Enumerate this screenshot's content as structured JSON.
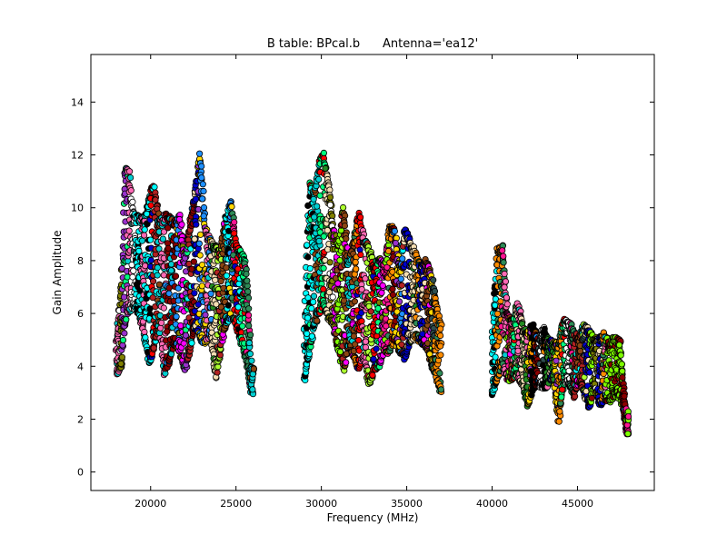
{
  "chart_data": {
    "type": "scatter",
    "title": "B table: BPcal.b      Antenna='ea12'",
    "xlabel": "Frequency (MHz)",
    "ylabel": "Gain Amplitude",
    "xlim": [
      16500,
      49500
    ],
    "ylim": [
      -0.7,
      15.8
    ],
    "xticks": [
      "20000",
      "25000",
      "30000",
      "35000",
      "40000",
      "45000"
    ],
    "xtick_values": [
      20000,
      25000,
      30000,
      35000,
      40000,
      45000
    ],
    "yticks": [
      "0",
      "2",
      "4",
      "6",
      "8",
      "10",
      "12",
      "14"
    ],
    "ytick_values": [
      0,
      2,
      4,
      6,
      8,
      10,
      12,
      14
    ],
    "grid": false,
    "legend": "none",
    "marker": "circle",
    "marker_edge_color": "#000000",
    "band_groups": [
      {
        "name": "group1",
        "x_range": [
          18000,
          26000
        ],
        "envelope": [
          [
            18000,
            3.6,
            5.1
          ],
          [
            18300,
            4.0,
            7.2
          ],
          [
            18500,
            5.5,
            11.4
          ],
          [
            18700,
            6.0,
            11.6
          ],
          [
            19000,
            6.2,
            9.8
          ],
          [
            19300,
            6.0,
            9.7
          ],
          [
            19600,
            5.2,
            9.6
          ],
          [
            19900,
            4.1,
            10.4
          ],
          [
            20200,
            4.6,
            11.0
          ],
          [
            20500,
            5.5,
            9.5
          ],
          [
            20800,
            3.6,
            9.8
          ],
          [
            21100,
            4.1,
            9.7
          ],
          [
            21400,
            4.9,
            9.5
          ],
          [
            21700,
            4.4,
            9.8
          ],
          [
            22000,
            3.7,
            8.1
          ],
          [
            22300,
            4.5,
            9.4
          ],
          [
            22600,
            5.5,
            10.6
          ],
          [
            22900,
            5.0,
            12.1
          ],
          [
            23200,
            4.8,
            9.3
          ],
          [
            23500,
            5.2,
            8.8
          ],
          [
            23800,
            3.5,
            8.6
          ],
          [
            24100,
            4.5,
            8.5
          ],
          [
            24400,
            5.6,
            9.6
          ],
          [
            24700,
            5.8,
            10.4
          ],
          [
            25000,
            5.5,
            8.6
          ],
          [
            25300,
            4.8,
            8.4
          ],
          [
            25600,
            4.2,
            7.9
          ],
          [
            25900,
            2.9,
            4.0
          ]
        ]
      },
      {
        "name": "group2",
        "x_range": [
          29000,
          37000
        ],
        "envelope": [
          [
            29000,
            3.4,
            5.6
          ],
          [
            29300,
            4.5,
            11.0
          ],
          [
            29600,
            5.5,
            10.5
          ],
          [
            29900,
            6.0,
            11.8
          ],
          [
            30100,
            6.3,
            12.1
          ],
          [
            30400,
            5.8,
            11.2
          ],
          [
            30700,
            5.5,
            9.2
          ],
          [
            31000,
            4.5,
            8.6
          ],
          [
            31300,
            3.8,
            10.1
          ],
          [
            31600,
            4.8,
            8.0
          ],
          [
            31900,
            4.3,
            8.8
          ],
          [
            32200,
            3.8,
            9.9
          ],
          [
            32500,
            4.3,
            8.9
          ],
          [
            32800,
            3.2,
            8.5
          ],
          [
            33100,
            3.8,
            7.8
          ],
          [
            33400,
            4.0,
            8.2
          ],
          [
            33700,
            4.6,
            7.9
          ],
          [
            34000,
            4.4,
            9.4
          ],
          [
            34300,
            5.0,
            9.2
          ],
          [
            34600,
            4.5,
            7.7
          ],
          [
            34900,
            4.2,
            9.3
          ],
          [
            35200,
            4.9,
            8.8
          ],
          [
            35500,
            5.0,
            8.4
          ],
          [
            35800,
            4.9,
            7.8
          ],
          [
            36100,
            4.7,
            8.1
          ],
          [
            36400,
            4.1,
            7.6
          ],
          [
            36700,
            3.6,
            6.6
          ],
          [
            37000,
            2.9,
            5.6
          ]
        ]
      },
      {
        "name": "group3",
        "x_range": [
          40000,
          48000
        ],
        "envelope": [
          [
            40000,
            2.9,
            5.2
          ],
          [
            40300,
            3.5,
            8.5
          ],
          [
            40600,
            4.0,
            8.6
          ],
          [
            40900,
            3.4,
            6.0
          ],
          [
            41200,
            3.5,
            5.7
          ],
          [
            41500,
            3.6,
            6.5
          ],
          [
            41800,
            3.2,
            5.5
          ],
          [
            42100,
            2.4,
            5.4
          ],
          [
            42400,
            3.1,
            5.6
          ],
          [
            42700,
            3.3,
            5.0
          ],
          [
            43000,
            3.1,
            5.5
          ],
          [
            43300,
            3.2,
            5.0
          ],
          [
            43600,
            3.5,
            5.0
          ],
          [
            43900,
            1.9,
            4.9
          ],
          [
            44200,
            3.3,
            5.8
          ],
          [
            44500,
            3.3,
            5.8
          ],
          [
            44800,
            2.8,
            5.3
          ],
          [
            45100,
            3.4,
            5.2
          ],
          [
            45400,
            2.9,
            5.6
          ],
          [
            45700,
            2.4,
            5.4
          ],
          [
            46000,
            3.1,
            5.1
          ],
          [
            46300,
            2.5,
            5.1
          ],
          [
            46600,
            2.7,
            5.3
          ],
          [
            46900,
            2.6,
            4.9
          ],
          [
            47200,
            2.9,
            5.2
          ],
          [
            47500,
            2.7,
            5.0
          ],
          [
            47700,
            2.2,
            3.2
          ],
          [
            47900,
            1.4,
            2.3
          ]
        ]
      }
    ],
    "palette": [
      "#00ffff",
      "#000000",
      "#ff8c00",
      "#2e8b57",
      "#ff1493",
      "#7fff00",
      "#8b0000",
      "#1e90ff",
      "#ffd700",
      "#9932cc",
      "#00ff7f",
      "#ff0000",
      "#0000cd",
      "#f5deb3",
      "#228b22",
      "#ff69b4",
      "#00ced1",
      "#8b4513",
      "#ff00ff",
      "#808000",
      "#ffffff",
      "#2f4f4f",
      "#adff2f",
      "#b22222"
    ]
  }
}
